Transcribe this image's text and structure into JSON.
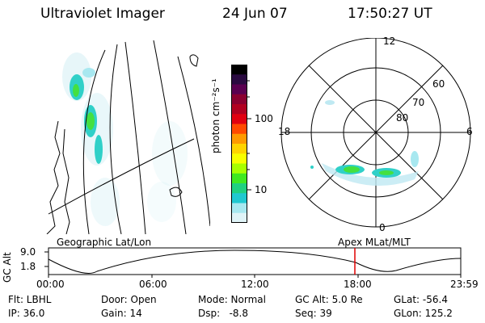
{
  "header": {
    "title": "Ultraviolet Imager",
    "date": "24 Jun 07",
    "time": "17:50:27 UT"
  },
  "left_panel": {
    "label": "Geographic Lat/Lon"
  },
  "colorbar": {
    "axis_label": "photon cm⁻²s⁻¹",
    "ticks": [
      "100",
      "10"
    ],
    "colors_top_to_bottom": [
      "#000000",
      "#2a0a40",
      "#5a0050",
      "#8a0030",
      "#b00020",
      "#e00010",
      "#ff4a00",
      "#ff9a00",
      "#ffd400",
      "#f8ff00",
      "#a8ff00",
      "#40e820",
      "#20d080",
      "#20c8d0",
      "#a8e8f0",
      "#e0f4f8"
    ]
  },
  "polar_panel": {
    "label": "Apex MLat/MLT",
    "lat_labels": [
      "80",
      "70",
      "60"
    ],
    "mlt_labels": {
      "top": "12",
      "bottom": "0",
      "left": "18",
      "right": "6"
    }
  },
  "altitude_plot": {
    "ylabel": "GC Alt",
    "yticks": [
      "9.0",
      "1.8"
    ],
    "xticks": [
      "00:00",
      "06:00",
      "12:00",
      "18:00",
      "23:59"
    ],
    "current_time_marker_color": "#e00000"
  },
  "info": {
    "row1": {
      "filter": "Flt: LBHL",
      "door": "Door: Open",
      "mode": "Mode: Normal",
      "gc_alt": "GC Alt: 5.0 Re",
      "glat": "GLat: -56.4"
    },
    "row2": {
      "ip": "IP: 36.0",
      "gain": "Gain: 14",
      "dsp": "Dsp:   -8.8",
      "seq": "Seq: 39",
      "glon": "GLon: 125.2"
    }
  }
}
